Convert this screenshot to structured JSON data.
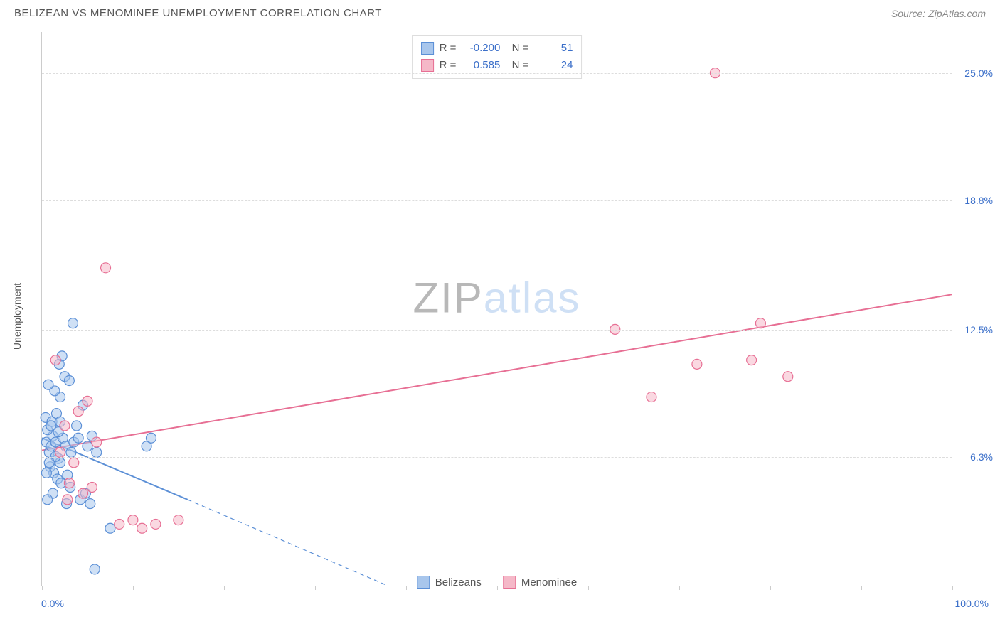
{
  "header": {
    "title": "BELIZEAN VS MENOMINEE UNEMPLOYMENT CORRELATION CHART",
    "source": "Source: ZipAtlas.com"
  },
  "watermark": {
    "part1": "ZIP",
    "part2": "atlas"
  },
  "chart": {
    "type": "scatter",
    "y_axis_title": "Unemployment",
    "background_color": "#ffffff",
    "grid_color": "#dddddd",
    "axis_color": "#cccccc",
    "label_color": "#3b6fc9",
    "xlim": [
      0,
      100
    ],
    "ylim": [
      0,
      27
    ],
    "x_ticks": [
      0,
      10,
      20,
      30,
      40,
      50,
      60,
      70,
      80,
      90,
      100
    ],
    "x_tick_labels": {
      "min": "0.0%",
      "max": "100.0%"
    },
    "y_gridlines": [
      6.3,
      12.5,
      18.8,
      25.0
    ],
    "y_tick_labels": [
      "6.3%",
      "12.5%",
      "18.8%",
      "25.0%"
    ],
    "marker_radius": 7,
    "marker_stroke_width": 1.2,
    "line_width": 2,
    "series": [
      {
        "name": "Belizeans",
        "fill_color": "#a8c6ec",
        "stroke_color": "#5b8fd6",
        "fill_opacity": 0.55,
        "stats": {
          "R": "-0.200",
          "N": "51"
        },
        "trend_solid": {
          "x1": 0,
          "y1": 7.2,
          "x2": 16,
          "y2": 4.2
        },
        "trend_dash": {
          "x1": 16,
          "y1": 4.2,
          "x2": 38,
          "y2": 0
        },
        "points": [
          [
            0.5,
            7.0
          ],
          [
            0.8,
            6.5
          ],
          [
            1.0,
            6.8
          ],
          [
            1.2,
            7.3
          ],
          [
            0.6,
            7.6
          ],
          [
            1.5,
            7.0
          ],
          [
            1.8,
            6.2
          ],
          [
            0.4,
            8.2
          ],
          [
            1.1,
            8.0
          ],
          [
            1.6,
            8.4
          ],
          [
            2.0,
            8.0
          ],
          [
            2.3,
            7.2
          ],
          [
            2.6,
            6.8
          ],
          [
            0.9,
            5.8
          ],
          [
            1.3,
            5.5
          ],
          [
            1.7,
            5.2
          ],
          [
            2.1,
            5.0
          ],
          [
            2.8,
            5.4
          ],
          [
            3.2,
            6.5
          ],
          [
            3.5,
            7.0
          ],
          [
            4.0,
            7.2
          ],
          [
            4.5,
            8.8
          ],
          [
            2.0,
            9.2
          ],
          [
            1.4,
            9.5
          ],
          [
            0.7,
            9.8
          ],
          [
            2.5,
            10.2
          ],
          [
            3.0,
            10.0
          ],
          [
            1.9,
            10.8
          ],
          [
            2.2,
            11.2
          ],
          [
            3.8,
            7.8
          ],
          [
            5.0,
            6.8
          ],
          [
            5.5,
            7.3
          ],
          [
            6.0,
            6.5
          ],
          [
            7.5,
            2.8
          ],
          [
            4.2,
            4.2
          ],
          [
            4.8,
            4.5
          ],
          [
            5.3,
            4.0
          ],
          [
            3.1,
            4.8
          ],
          [
            2.7,
            4.0
          ],
          [
            1.2,
            4.5
          ],
          [
            0.6,
            4.2
          ],
          [
            5.8,
            0.8
          ],
          [
            3.4,
            12.8
          ],
          [
            11.5,
            6.8
          ],
          [
            12.0,
            7.2
          ],
          [
            2.0,
            6.0
          ],
          [
            1.5,
            6.3
          ],
          [
            0.8,
            6.0
          ],
          [
            1.0,
            7.8
          ],
          [
            0.5,
            5.5
          ],
          [
            1.8,
            7.5
          ]
        ]
      },
      {
        "name": "Menominee",
        "fill_color": "#f5b8c8",
        "stroke_color": "#e76f94",
        "fill_opacity": 0.55,
        "stats": {
          "R": "0.585",
          "N": "24"
        },
        "trend_solid": {
          "x1": 0,
          "y1": 6.6,
          "x2": 100,
          "y2": 14.2
        },
        "trend_dash": null,
        "points": [
          [
            1.5,
            11.0
          ],
          [
            2.0,
            6.5
          ],
          [
            2.5,
            7.8
          ],
          [
            3.0,
            5.0
          ],
          [
            3.5,
            6.0
          ],
          [
            4.0,
            8.5
          ],
          [
            4.5,
            4.5
          ],
          [
            5.0,
            9.0
          ],
          [
            6.0,
            7.0
          ],
          [
            7.0,
            15.5
          ],
          [
            8.5,
            3.0
          ],
          [
            10.0,
            3.2
          ],
          [
            11.0,
            2.8
          ],
          [
            12.5,
            3.0
          ],
          [
            15.0,
            3.2
          ],
          [
            63.0,
            12.5
          ],
          [
            67.0,
            9.2
          ],
          [
            72.0,
            10.8
          ],
          [
            74.0,
            25.0
          ],
          [
            78.0,
            11.0
          ],
          [
            79.0,
            12.8
          ],
          [
            82.0,
            10.2
          ],
          [
            5.5,
            4.8
          ],
          [
            2.8,
            4.2
          ]
        ]
      }
    ],
    "legend_bottom": [
      {
        "label": "Belizeans",
        "fill": "#a8c6ec",
        "stroke": "#5b8fd6"
      },
      {
        "label": "Menominee",
        "fill": "#f5b8c8",
        "stroke": "#e76f94"
      }
    ]
  }
}
